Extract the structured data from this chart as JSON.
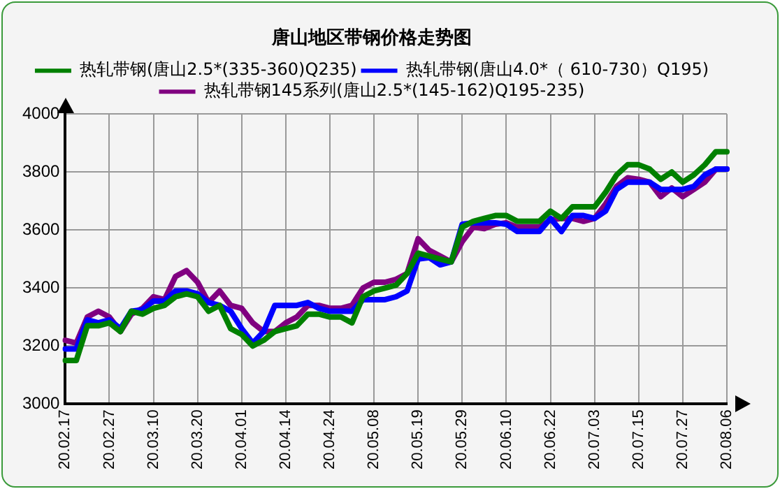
{
  "chart_data": {
    "type": "line",
    "title": "唐山地区带钢价格走势图",
    "categories": [
      "20.02.17",
      null,
      null,
      null,
      "20.02.27",
      null,
      null,
      null,
      "20.03.10",
      null,
      null,
      null,
      "20.03.20",
      null,
      null,
      null,
      "20.04.01",
      null,
      null,
      null,
      "20.04.14",
      null,
      null,
      null,
      "20.04.24",
      null,
      null,
      null,
      "20.05.08",
      null,
      null,
      null,
      "20.05.19",
      null,
      null,
      null,
      "20.05.29",
      null,
      null,
      null,
      "20.06.10",
      null,
      null,
      null,
      "20.06.22",
      null,
      null,
      null,
      "20.07.03",
      null,
      null,
      null,
      "20.07.15",
      null,
      null,
      null,
      "20.07.27",
      null,
      null,
      null,
      "20.08.06"
    ],
    "series": [
      {
        "name": "热轧带钢(唐山2.5*(335-360)Q235)",
        "color": "#008000",
        "values": [
          3150,
          3150,
          3270,
          3270,
          3280,
          3250,
          3320,
          3310,
          3330,
          3340,
          3370,
          3380,
          3370,
          3320,
          3340,
          3260,
          3240,
          3200,
          3220,
          3250,
          3260,
          3270,
          3310,
          3310,
          3300,
          3300,
          3280,
          3370,
          3390,
          3400,
          3410,
          3450,
          3520,
          3510,
          3500,
          3490,
          3610,
          3630,
          3640,
          3650,
          3650,
          3630,
          3630,
          3630,
          3665,
          3640,
          3680,
          3680,
          3680,
          3730,
          3790,
          3825,
          3825,
          3810,
          3775,
          3800,
          3765,
          3790,
          3825,
          3870,
          3870
        ]
      },
      {
        "name": "热轧带钢(唐山4.0*（ 610-730）Q195)",
        "color": "#0000ff",
        "values": [
          3190,
          3190,
          3290,
          3280,
          3290,
          3260,
          3320,
          3325,
          3355,
          3355,
          3390,
          3390,
          3380,
          3350,
          3340,
          3320,
          3260,
          3210,
          3250,
          3340,
          3340,
          3340,
          3350,
          3330,
          3320,
          3320,
          3320,
          3360,
          3360,
          3360,
          3370,
          3390,
          3500,
          3505,
          3480,
          3490,
          3620,
          3625,
          3625,
          3625,
          3620,
          3595,
          3595,
          3595,
          3640,
          3595,
          3650,
          3650,
          3640,
          3665,
          3740,
          3765,
          3765,
          3765,
          3740,
          3740,
          3740,
          3750,
          3790,
          3810,
          3810
        ]
      },
      {
        "name": "热轧带钢145系列(唐山2.5*(145-162)Q195-235)",
        "color": "#800080",
        "values": [
          3220,
          3210,
          3300,
          3320,
          3300,
          3250,
          3310,
          3330,
          3370,
          3360,
          3440,
          3460,
          3420,
          3350,
          3390,
          3340,
          3330,
          3280,
          3250,
          3250,
          3280,
          3300,
          3340,
          3340,
          3330,
          3330,
          3340,
          3400,
          3420,
          3420,
          3430,
          3450,
          3570,
          3530,
          3510,
          3490,
          3560,
          3610,
          3605,
          3620,
          3625,
          3610,
          3610,
          3610,
          3635,
          3640,
          3640,
          3630,
          3640,
          3690,
          3750,
          3780,
          3775,
          3765,
          3715,
          3745,
          3715,
          3740,
          3765,
          3810,
          3810
        ]
      }
    ],
    "ylim": [
      3000,
      4000
    ],
    "yticks": [
      3000,
      3200,
      3400,
      3600,
      3800,
      4000
    ],
    "grid": true,
    "legend": "top"
  }
}
